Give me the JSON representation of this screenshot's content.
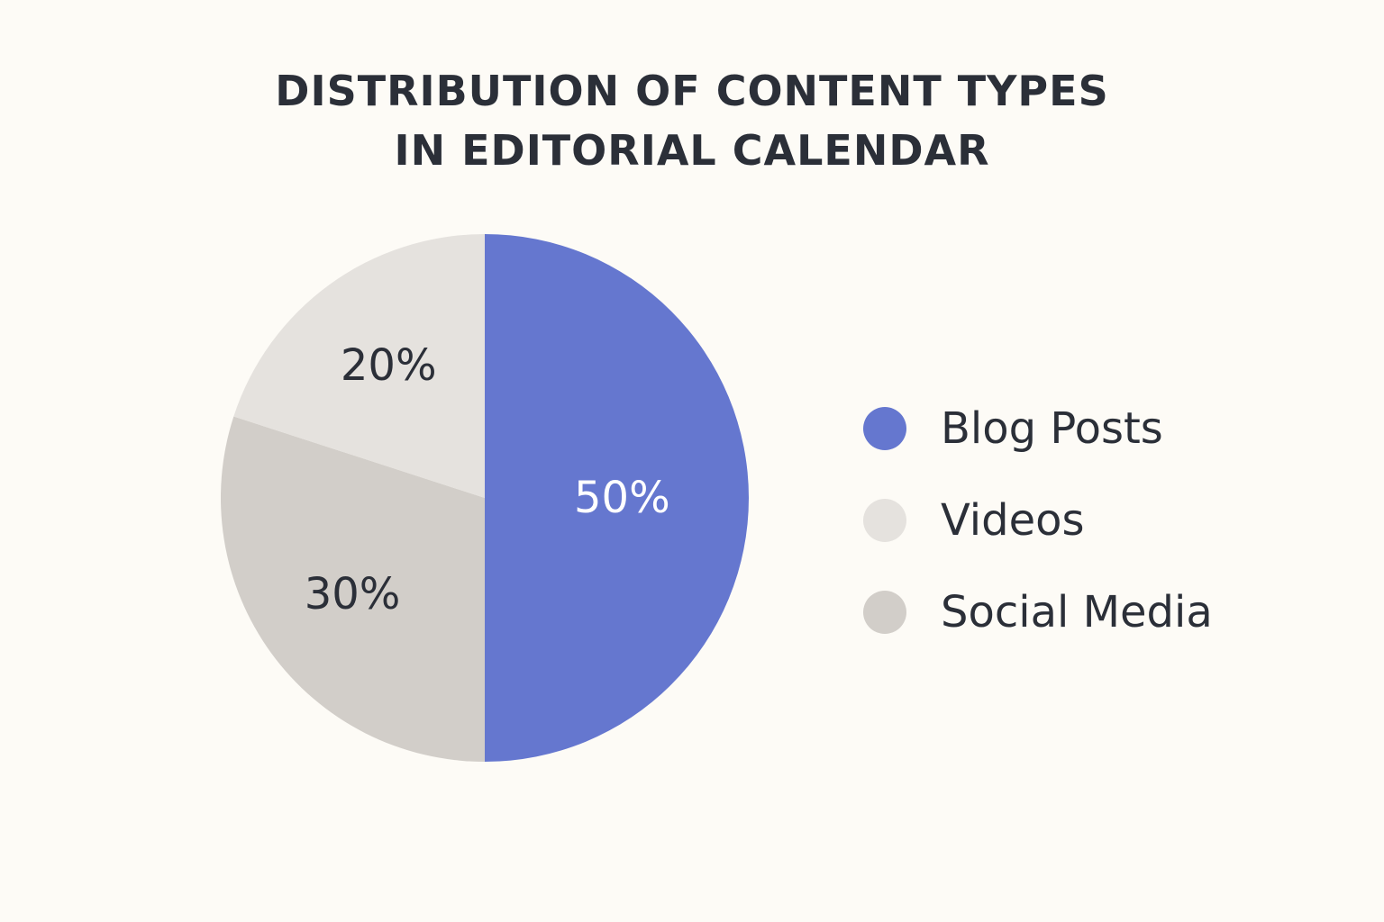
{
  "chart_data": {
    "type": "pie",
    "title_lines": [
      "DISTRIBUTION OF CONTENT TYPES",
      "IN EDITORIAL CALENDAR"
    ],
    "categories": [
      "Blog Posts",
      "Videos",
      "Social Media"
    ],
    "values": [
      50,
      20,
      30
    ],
    "value_labels": [
      "50%",
      "20%",
      "30%"
    ],
    "colors": [
      "#6577cf",
      "#e5e2de",
      "#d2cec9"
    ],
    "label_colors": [
      "#ffffff",
      "#2b2f38",
      "#2b2f38"
    ],
    "slice_order_clockwise_from_top": [
      "Blog Posts",
      "Social Media",
      "Videos"
    ],
    "legend_placement": "right"
  }
}
